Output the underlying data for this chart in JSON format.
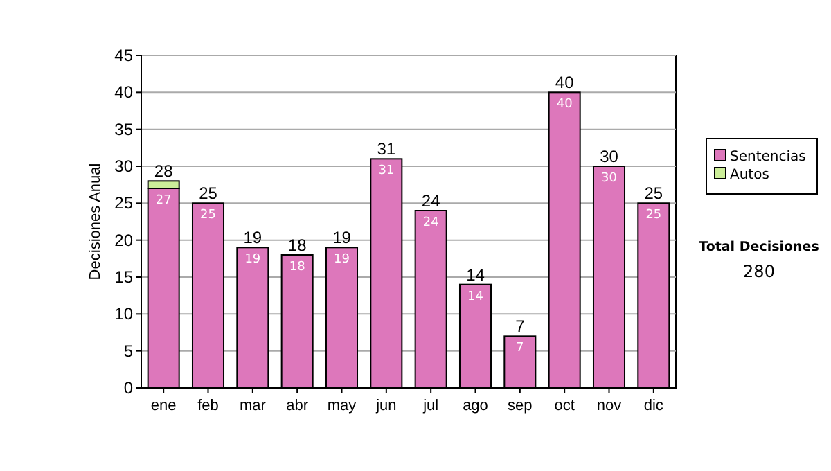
{
  "chart_data": {
    "type": "bar",
    "stacked": true,
    "ylabel": "Decisiones Anual",
    "categories": [
      "ene",
      "feb",
      "mar",
      "abr",
      "may",
      "jun",
      "jul",
      "ago",
      "sep",
      "oct",
      "nov",
      "dic"
    ],
    "series": [
      {
        "name": "Sentencias",
        "color": "#dd77bb",
        "values": [
          27,
          25,
          19,
          18,
          19,
          31,
          24,
          14,
          7,
          40,
          30,
          25
        ],
        "value_labels": [
          "27",
          "25",
          "19",
          "18",
          "19",
          "31",
          "24",
          "14",
          "7",
          "40",
          "30",
          "25"
        ]
      },
      {
        "name": "Autos",
        "color": "#ccee99",
        "values": [
          1,
          0,
          0,
          0,
          0,
          0,
          0,
          0,
          0,
          0,
          0,
          0
        ]
      }
    ],
    "totals": [
      "28",
      "25",
      "19",
      "18",
      "19",
      "31",
      "24",
      "14",
      "7",
      "40",
      "30",
      "25"
    ],
    "ylim": [
      0,
      45
    ],
    "yticks": [
      0,
      5,
      10,
      15,
      20,
      25,
      30,
      35,
      40,
      45
    ],
    "grid": "y",
    "legend": "right",
    "annotations": [
      "Total Decisiones",
      "280"
    ]
  }
}
